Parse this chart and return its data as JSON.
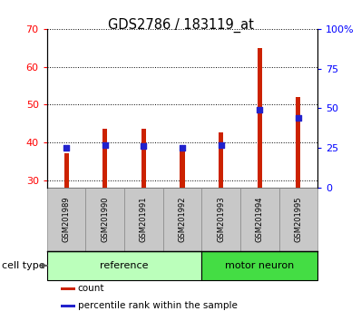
{
  "title": "GDS2786 / 183119_at",
  "samples": [
    "GSM201989",
    "GSM201990",
    "GSM201991",
    "GSM201992",
    "GSM201993",
    "GSM201994",
    "GSM201995"
  ],
  "count_values": [
    37.0,
    43.5,
    43.5,
    38.5,
    42.5,
    65.0,
    52.0
  ],
  "percentile_values": [
    25,
    27,
    26,
    25,
    27,
    49,
    44
  ],
  "ylim_left": [
    28,
    70
  ],
  "ylim_right": [
    0,
    100
  ],
  "y_ticks_left": [
    30,
    40,
    50,
    60,
    70
  ],
  "y_ticks_right": [
    0,
    25,
    50,
    75,
    100
  ],
  "y_ticks_right_labels": [
    "0",
    "25",
    "50",
    "75",
    "100%"
  ],
  "bar_color": "#cc2200",
  "percentile_color": "#2222cc",
  "groups": [
    {
      "label": "reference",
      "start": 0,
      "end": 3,
      "color": "#bbffbb"
    },
    {
      "label": "motor neuron",
      "start": 4,
      "end": 6,
      "color": "#44dd44"
    }
  ],
  "legend_items": [
    {
      "label": "count",
      "color": "#cc2200"
    },
    {
      "label": "percentile rank within the sample",
      "color": "#2222cc"
    }
  ],
  "cell_type_label": "cell type",
  "bar_width": 0.12,
  "background_label": "#c8c8c8",
  "box_edge_color": "#888888"
}
